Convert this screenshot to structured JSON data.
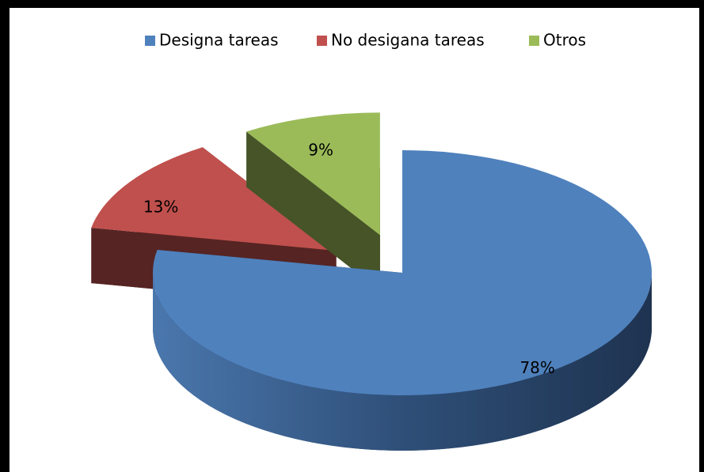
{
  "chart_data": {
    "type": "pie3d",
    "categories": [
      "Designa tareas",
      "No desigana tareas",
      "Otros"
    ],
    "values": [
      78,
      13,
      9
    ],
    "value_labels": [
      "78%",
      "13%",
      "9%"
    ],
    "colors": [
      "#4f81bd",
      "#c0504d",
      "#9bbb59"
    ],
    "legend": "top"
  }
}
